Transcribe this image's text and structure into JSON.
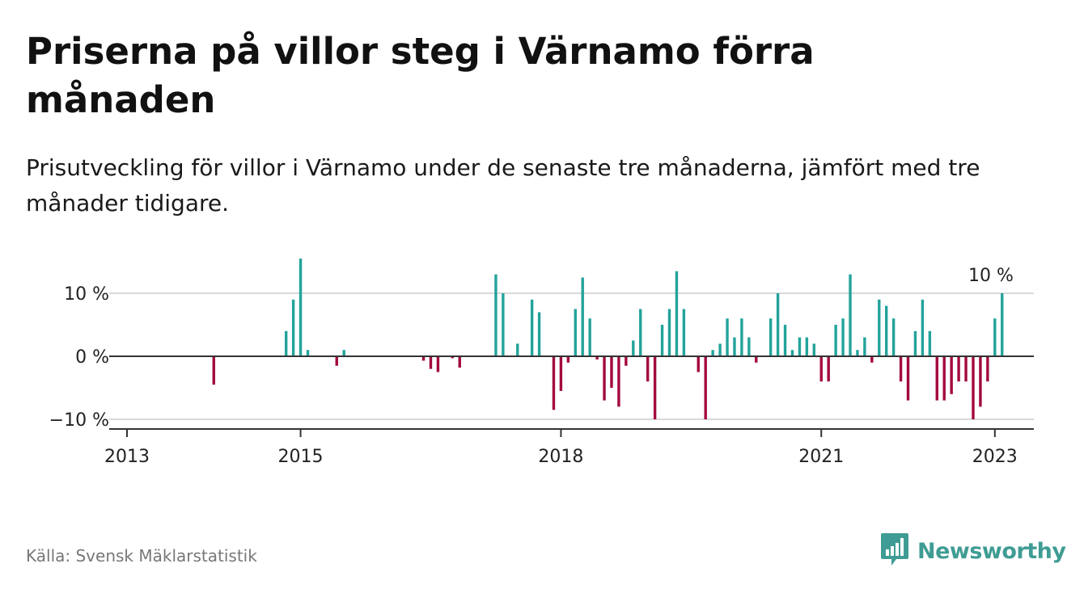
{
  "header": {
    "title": "Priserna på villor steg i Värnamo förra månaden",
    "subtitle": "Prisutveckling för villor i Värnamo under de senaste tre månaderna, jämfört med tre månader tidigare."
  },
  "footer": {
    "source": "Källa: Svensk Mäklarstatistik",
    "brand": "Newsworthy",
    "brand_icon": "bar-chart-speech-bubble-icon"
  },
  "colors": {
    "positive": "#23a39b",
    "negative": "#a3083f",
    "zero_line": "#333333",
    "grid": "#d9d9d9",
    "brand": "#3f9c94"
  },
  "chart_data": {
    "type": "bar",
    "x_unit": "months",
    "y_unit": "%",
    "ylim": [
      -11.5,
      13
    ],
    "y_ticks": [
      {
        "value": 10,
        "label": "10 %"
      },
      {
        "value": 0,
        "label": "0 %"
      },
      {
        "value": -10,
        "label": "−10 %"
      }
    ],
    "x_ticks": [
      {
        "value": "2013-01",
        "label": "2013"
      },
      {
        "value": "2015-01",
        "label": "2015"
      },
      {
        "value": "2018-01",
        "label": "2018"
      },
      {
        "value": "2021-01",
        "label": "2021"
      },
      {
        "value": "2023-01",
        "label": "2023"
      }
    ],
    "grid": true,
    "annotation": {
      "x": "2022-12",
      "label": "10 %"
    },
    "bars": [
      {
        "x": "2014-01",
        "y": -4.5
      },
      {
        "x": "2014-11",
        "y": 4
      },
      {
        "x": "2014-12",
        "y": 9
      },
      {
        "x": "2015-01",
        "y": 15.5
      },
      {
        "x": "2015-02",
        "y": 1
      },
      {
        "x": "2015-06",
        "y": -1.5
      },
      {
        "x": "2015-07",
        "y": 1
      },
      {
        "x": "2016-06",
        "y": -0.7
      },
      {
        "x": "2016-07",
        "y": -2
      },
      {
        "x": "2016-08",
        "y": -2.5
      },
      {
        "x": "2016-10",
        "y": -0.3
      },
      {
        "x": "2016-11",
        "y": -1.8
      },
      {
        "x": "2017-04",
        "y": 13
      },
      {
        "x": "2017-05",
        "y": 10
      },
      {
        "x": "2017-07",
        "y": 2
      },
      {
        "x": "2017-09",
        "y": 9
      },
      {
        "x": "2017-10",
        "y": 7
      },
      {
        "x": "2017-12",
        "y": -8.5
      },
      {
        "x": "2018-01",
        "y": -5.5
      },
      {
        "x": "2018-02",
        "y": -1
      },
      {
        "x": "2018-03",
        "y": 7.5
      },
      {
        "x": "2018-04",
        "y": 12.5
      },
      {
        "x": "2018-05",
        "y": 6
      },
      {
        "x": "2018-06",
        "y": -0.5
      },
      {
        "x": "2018-07",
        "y": -7
      },
      {
        "x": "2018-08",
        "y": -5
      },
      {
        "x": "2018-09",
        "y": -8
      },
      {
        "x": "2018-10",
        "y": -1.5
      },
      {
        "x": "2018-11",
        "y": 2.5
      },
      {
        "x": "2018-12",
        "y": 7.5
      },
      {
        "x": "2019-01",
        "y": -4
      },
      {
        "x": "2019-02",
        "y": -10
      },
      {
        "x": "2019-03",
        "y": 5
      },
      {
        "x": "2019-04",
        "y": 7.5
      },
      {
        "x": "2019-05",
        "y": 13.5
      },
      {
        "x": "2019-06",
        "y": 7.5
      },
      {
        "x": "2019-08",
        "y": -2.5
      },
      {
        "x": "2019-09",
        "y": -10
      },
      {
        "x": "2019-10",
        "y": 1
      },
      {
        "x": "2019-11",
        "y": 2
      },
      {
        "x": "2019-12",
        "y": 6
      },
      {
        "x": "2020-01",
        "y": 3
      },
      {
        "x": "2020-02",
        "y": 6
      },
      {
        "x": "2020-03",
        "y": 3
      },
      {
        "x": "2020-04",
        "y": -1
      },
      {
        "x": "2020-06",
        "y": 6
      },
      {
        "x": "2020-07",
        "y": 10
      },
      {
        "x": "2020-08",
        "y": 5
      },
      {
        "x": "2020-09",
        "y": 1
      },
      {
        "x": "2020-10",
        "y": 3
      },
      {
        "x": "2020-11",
        "y": 3
      },
      {
        "x": "2020-12",
        "y": 2
      },
      {
        "x": "2021-01",
        "y": -4
      },
      {
        "x": "2021-02",
        "y": -4
      },
      {
        "x": "2021-03",
        "y": 5
      },
      {
        "x": "2021-04",
        "y": 6
      },
      {
        "x": "2021-05",
        "y": 13
      },
      {
        "x": "2021-06",
        "y": 1
      },
      {
        "x": "2021-07",
        "y": 3
      },
      {
        "x": "2021-08",
        "y": -1
      },
      {
        "x": "2021-09",
        "y": 9
      },
      {
        "x": "2021-10",
        "y": 8
      },
      {
        "x": "2021-11",
        "y": 6
      },
      {
        "x": "2021-12",
        "y": -4
      },
      {
        "x": "2022-01",
        "y": -7
      },
      {
        "x": "2022-02",
        "y": 4
      },
      {
        "x": "2022-03",
        "y": 9
      },
      {
        "x": "2022-04",
        "y": 4
      },
      {
        "x": "2022-05",
        "y": -7
      },
      {
        "x": "2022-06",
        "y": -7
      },
      {
        "x": "2022-07",
        "y": -6
      },
      {
        "x": "2022-08",
        "y": -4
      },
      {
        "x": "2022-09",
        "y": -4
      },
      {
        "x": "2022-10",
        "y": -10
      },
      {
        "x": "2022-11",
        "y": -8
      },
      {
        "x": "2022-12",
        "y": -4
      },
      {
        "x": "2023-01",
        "y": 6
      },
      {
        "x": "2023-02",
        "y": 10
      }
    ]
  }
}
